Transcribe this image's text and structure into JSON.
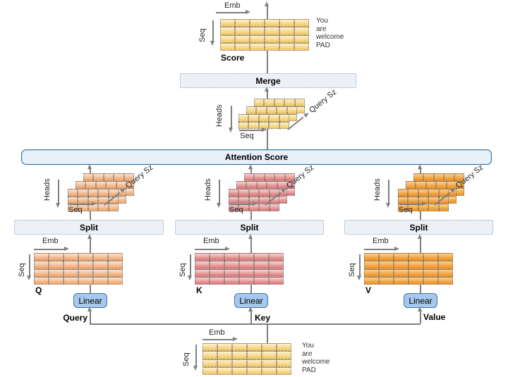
{
  "colors": {
    "arrow_gray": "#7f7f7f",
    "score_matrix_yellow": "#f4c65e",
    "q_matrix_peach": "#efa166",
    "k_matrix_pink": "#db7272",
    "v_matrix_orange": "#f08c1e",
    "linear_box_blue": "#a6c8ec",
    "node_border_blue": "#2e6da4",
    "dotted_box_bg": "#edf1f6"
  },
  "axis_labels": {
    "emb": "Emb",
    "seq": "Seq",
    "heads": "Heads",
    "query_size": "Query Sz"
  },
  "node_labels": {
    "merge": "Merge",
    "attention_score": "Attention Score",
    "split": "Split",
    "linear": "Linear"
  },
  "matrix_labels": {
    "score": "Score",
    "q": "Q",
    "k": "K",
    "v": "V"
  },
  "wire_labels": {
    "query": "Query",
    "key": "Key",
    "value": "Value"
  },
  "tokens": [
    "You",
    "are",
    "welcome",
    "PAD"
  ]
}
